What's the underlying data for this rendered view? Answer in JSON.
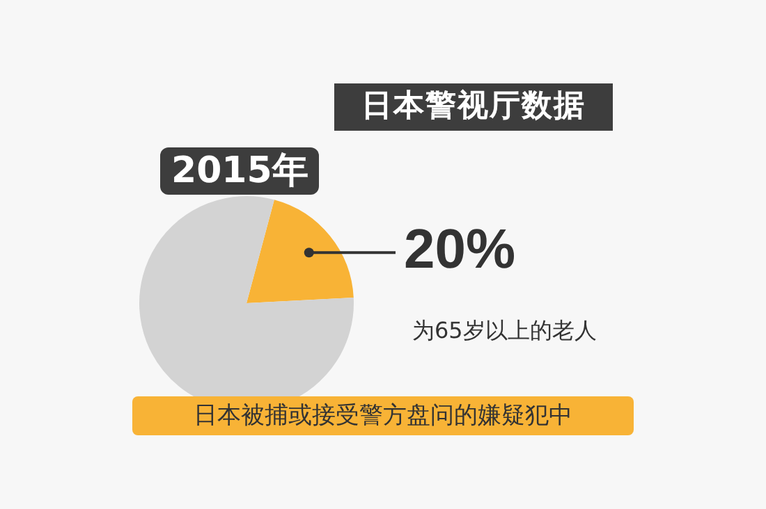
{
  "chart_data": {
    "type": "pie",
    "title": "日本警视厅数据",
    "subtitle": "2015年",
    "categories": [
      null,
      null
    ],
    "values": [
      20,
      80
    ],
    "colors": [
      "#f8b336",
      "#d3d3d3"
    ],
    "value_labels": [
      "20%",
      null
    ],
    "annotations": [
      "为65岁以上的老人",
      "日本被捕或接受警方盘问的嫌疑犯中"
    ],
    "legend": false
  }
}
